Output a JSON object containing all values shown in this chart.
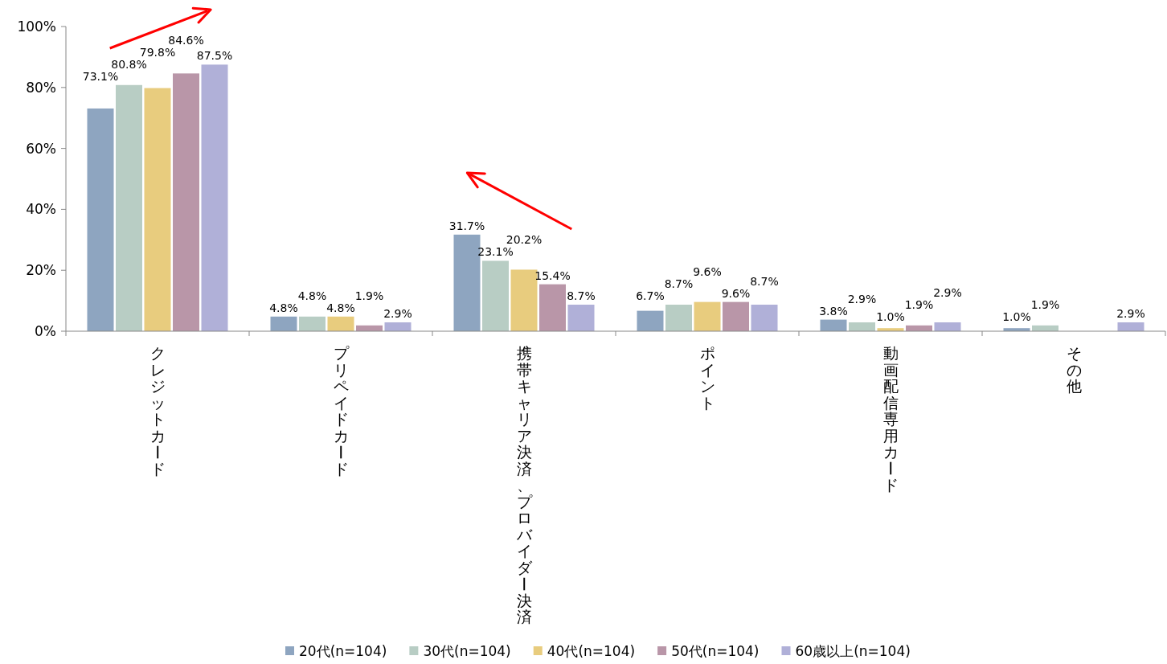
{
  "chart_data": {
    "type": "bar",
    "categories": [
      "クレジットカード",
      "プリペイドカード",
      "携帯キャリア決済、プロバイダー決済",
      "ポイント",
      "動画配信専用カード",
      "その他"
    ],
    "series": [
      {
        "name": "20代(n=104)",
        "color": "#8ea5c0",
        "values": [
          73.1,
          4.8,
          31.7,
          6.7,
          3.8,
          1.0
        ],
        "value_labels": [
          "73.1%",
          "4.8%",
          "31.7%",
          "6.7%",
          "3.8%",
          "1.0%"
        ]
      },
      {
        "name": "30代(n=104)",
        "color": "#b8cdc4",
        "values": [
          80.8,
          4.8,
          23.1,
          8.7,
          2.9,
          1.9
        ],
        "value_labels": [
          "80.8%",
          "4.8%",
          "23.1%",
          "8.7%",
          "2.9%",
          "1.9%"
        ]
      },
      {
        "name": "40代(n=104)",
        "color": "#e8cc7e",
        "values": [
          79.8,
          4.8,
          20.2,
          9.6,
          1.0,
          0
        ],
        "value_labels": [
          "79.8%",
          "4.8%",
          "20.2%",
          "9.6%",
          "1.0%",
          null
        ]
      },
      {
        "name": "50代(n=104)",
        "color": "#b996a8",
        "values": [
          84.6,
          1.9,
          15.4,
          9.6,
          1.9,
          0
        ],
        "value_labels": [
          "84.6%",
          "1.9%",
          "15.4%",
          "9.6%",
          "1.9%",
          null
        ]
      },
      {
        "name": "60歳以上(n=104)",
        "color": "#b0b0d8",
        "values": [
          87.5,
          2.9,
          8.7,
          8.7,
          2.9,
          2.9
        ],
        "value_labels": [
          "87.5%",
          "2.9%",
          "8.7%",
          "8.7%",
          "2.9%",
          "2.9%"
        ]
      }
    ],
    "ylim": [
      0,
      100
    ],
    "yticks": [
      {
        "value": 0,
        "label": "0%"
      },
      {
        "value": 20,
        "label": "20%"
      },
      {
        "value": 40,
        "label": "40%"
      },
      {
        "value": 60,
        "label": "60%"
      },
      {
        "value": 80,
        "label": "80%"
      },
      {
        "value": 100,
        "label": "100%"
      }
    ],
    "grid": false,
    "legend": "bottom"
  }
}
